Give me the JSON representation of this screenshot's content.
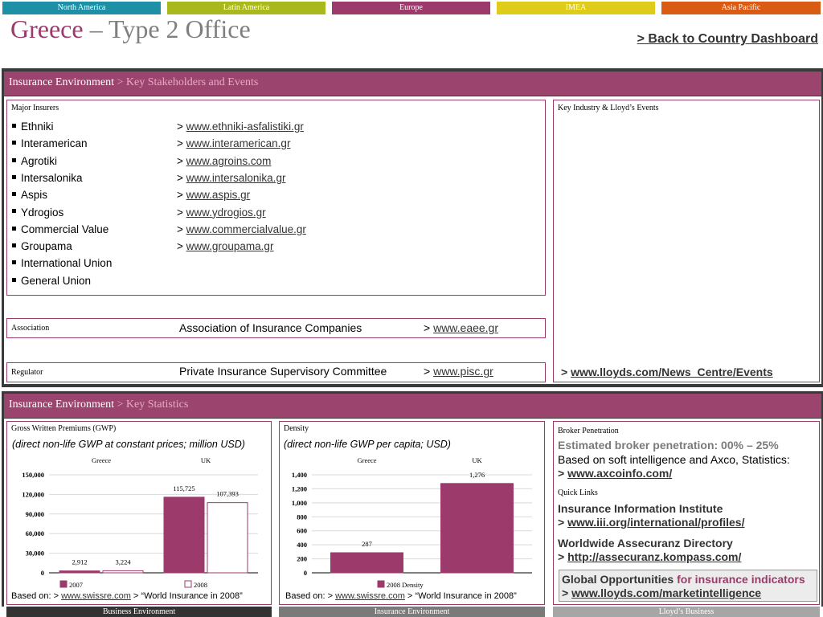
{
  "regions": [
    {
      "label": "North America",
      "color": "#1e90a6"
    },
    {
      "label": "Latin America",
      "color": "#a9b81c"
    },
    {
      "label": "Europe",
      "color": "#9b3a6b"
    },
    {
      "label": "IMEA",
      "color": "#dfcc1a"
    },
    {
      "label": "Asia Pacific",
      "color": "#d95b14"
    }
  ],
  "header": {
    "country": "Greece",
    "subtitle": " – Type 2 Office",
    "back_link": "> Back to Country Dashboard"
  },
  "stakeholders": {
    "band_title": "Insurance Environment",
    "band_sub": " > Key Stakeholders and Events",
    "major_insurers_label": "Major Insurers",
    "insurers": [
      {
        "name": "Ethniki",
        "url": "www.ethniki-asfalistiki.gr"
      },
      {
        "name": "Interamerican",
        "url": "www.interamerican.gr"
      },
      {
        "name": "Agrotiki",
        "url": "www.agroins.com"
      },
      {
        "name": "Intersalonika",
        "url": "www.intersalonika.gr"
      },
      {
        "name": "Aspis",
        "url": "www.aspis.gr"
      },
      {
        "name": "Ydrogios",
        "url": "www.ydrogios.gr"
      },
      {
        "name": "Commercial Value",
        "url": "www.commercialvalue.gr"
      },
      {
        "name": "Groupama",
        "url": "www.groupama.gr"
      },
      {
        "name": "International Union",
        "url": ""
      },
      {
        "name": "General Union",
        "url": ""
      }
    ],
    "link_prefix": "> ",
    "association": {
      "label": "Association",
      "name": "Association of Insurance Companies",
      "url": "www.eaee.gr"
    },
    "regulator": {
      "label": "Regulator",
      "name": "Private Insurance Supervisory Committee",
      "url": "www.pisc.gr"
    },
    "events_label": "Key Industry & Lloyd’s Events",
    "events_link": "www.lloyds.com/News_Centre/Events"
  },
  "statistics": {
    "band_title": "Insurance Environment",
    "band_sub": " > Key Statistics",
    "gwp": {
      "label": "Gross Written Premiums (GWP)",
      "note": "(direct non-life GWP at constant prices; million USD)",
      "source_prefix": "Based on: > ",
      "source_link": "www.swissre.com",
      "source_suffix": " > “World Insurance in 2008”"
    },
    "density": {
      "label": "Density",
      "note": "(direct non-life GWP per capita; USD)",
      "source_prefix": "Based on: > ",
      "source_link": "www.swissre.com",
      "source_suffix": " > “World Insurance in 2008”"
    },
    "broker": {
      "label": "Broker Penetration",
      "estimate": "Estimated broker penetration: 00% – 25%",
      "basis": "Based on soft intelligence and Axco, Statistics:",
      "link": "www.axcoinfo.com/"
    },
    "quick_links": {
      "label": "Quick Links",
      "iii_title": "Insurance Information Institute",
      "iii_link": "www.iii.org/international/profiles/",
      "wad_title": "Worldwide Assecuranz Directory",
      "wad_link": "http://assecuranz.kompass.com/",
      "go_title": "Global Opportunities",
      "go_highlight": " for insurance indicators",
      "go_link": "www.lloyds.com/marketintelligence"
    }
  },
  "chart_data": [
    {
      "type": "bar",
      "title": "",
      "categories": [
        "Greece",
        "UK"
      ],
      "series": [
        {
          "name": "2007",
          "values": [
            2912,
            115725
          ],
          "color": "#9b3a6b"
        },
        {
          "name": "2008",
          "values": [
            3224,
            107393
          ],
          "color": "#ffffff"
        }
      ],
      "data_labels": [
        [
          "2,912",
          "115,725"
        ],
        [
          "3,224",
          "107,393"
        ]
      ],
      "yticks": [
        "0",
        "30,000",
        "60,000",
        "90,000",
        "120,000",
        "150,000"
      ],
      "ylim": [
        0,
        150000
      ],
      "legend": "bottom",
      "grid": true
    },
    {
      "type": "bar",
      "title": "",
      "categories": [
        "Greece",
        "UK"
      ],
      "series": [
        {
          "name": "2008 Density",
          "values": [
            287,
            1276
          ],
          "color": "#9b3a6b"
        }
      ],
      "data_labels": [
        [
          "287",
          "1,276"
        ]
      ],
      "yticks": [
        "0",
        "200",
        "400",
        "600",
        "800",
        "1,000",
        "1,200",
        "1,400"
      ],
      "ylim": [
        0,
        1400
      ],
      "legend": "bottom",
      "grid": true
    }
  ],
  "footer_tabs": [
    {
      "label": "Business Environment",
      "color": "#333333"
    },
    {
      "label": "Insurance Environment",
      "color": "#7a7a7a"
    },
    {
      "label": "Lloyd’s Business",
      "color": "#a6a6a6"
    }
  ]
}
